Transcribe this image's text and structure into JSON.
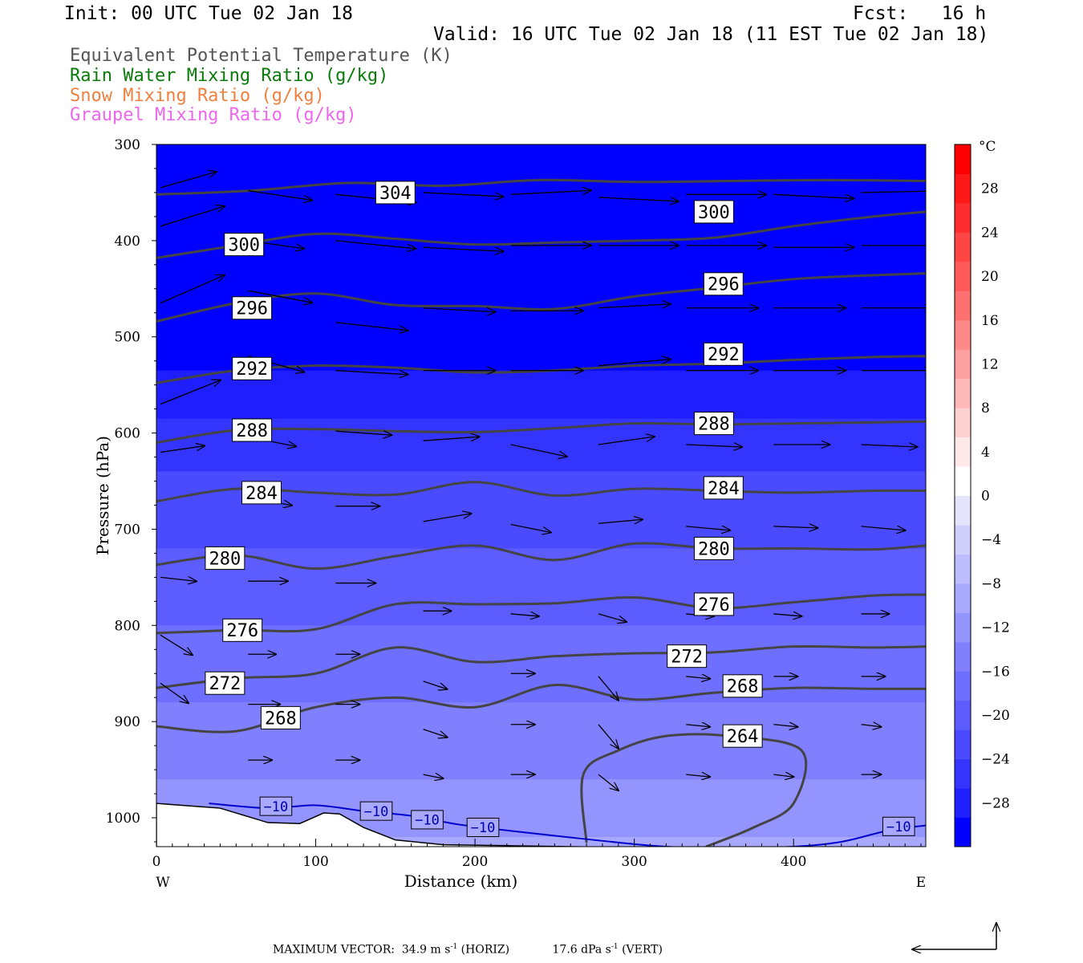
{
  "header": {
    "init": "Init: 00 UTC Tue 02 Jan 18",
    "fcst": "Fcst:   16 h",
    "valid": "Valid: 16 UTC Tue 02 Jan 18 (11 EST Tue 02 Jan 18)"
  },
  "legend": [
    {
      "text": "Equivalent Potential Temperature (K)",
      "color": "#555555"
    },
    {
      "text": "Rain Water Mixing Ratio (g/kg)",
      "color": "#0a7a0a"
    },
    {
      "text": "Snow Mixing Ratio (g/kg)",
      "color": "#f08040"
    },
    {
      "text": "Graupel Mixing Ratio (g/kg)",
      "color": "#ee66ee"
    }
  ],
  "footer": {
    "max_vector_label": "MAXIMUM VECTOR:",
    "horiz": "34.9 m s",
    "horiz_unit": "(HORIZ)",
    "vert": "17.6 dPa s",
    "vert_unit": "(VERT)",
    "exponent": "-1"
  },
  "chart_data": {
    "type": "heatmap",
    "xlabel": "Distance (km)",
    "ylabel": "Pressure (hPa)",
    "xlim": [
      0,
      483
    ],
    "ylim": [
      1030,
      300
    ],
    "x_ticks": [
      0,
      100,
      200,
      300,
      400
    ],
    "y_ticks": [
      300,
      400,
      500,
      600,
      700,
      800,
      900,
      1000
    ],
    "x_end_labels": {
      "left": "W",
      "right": "E"
    },
    "colorbar": {
      "unit": "°C",
      "ticks": [
        28,
        24,
        20,
        16,
        12,
        8,
        4,
        0,
        -4,
        -8,
        -12,
        -16,
        -20,
        -24,
        -28
      ],
      "range": [
        -32,
        32
      ],
      "colors_low_to_high": [
        "#0000ff",
        "#1e1eff",
        "#3434ff",
        "#4a4aff",
        "#5c5cff",
        "#6e6eff",
        "#8080ff",
        "#9494ff",
        "#a8a8ff",
        "#bcbcff",
        "#d0d0ff",
        "#e4e4ff",
        "#ffffff",
        "#ffe8e8",
        "#ffd0d0",
        "#ffb8b8",
        "#ffa0a0",
        "#ff8888",
        "#ff7070",
        "#ff5a5a",
        "#ff4444",
        "#ff2e2e",
        "#ff1818",
        "#ff0000"
      ]
    },
    "temperature_field_rows": [
      {
        "p": 300,
        "t": -48
      },
      {
        "p": 540,
        "t": -29
      },
      {
        "p": 580,
        "t": -27
      },
      {
        "p": 640,
        "t": -24
      },
      {
        "p": 700,
        "t": -22
      },
      {
        "p": 760,
        "t": -20
      },
      {
        "p": 820,
        "t": -18
      },
      {
        "p": 880,
        "t": -16
      },
      {
        "p": 940,
        "t": -14
      },
      {
        "p": 1000,
        "t": -12
      },
      {
        "p": 1030,
        "t": -10
      }
    ],
    "theta_e_contours": [
      {
        "level": 304,
        "x": [
          0,
          60,
          120,
          180,
          240,
          300,
          360,
          420,
          483
        ],
        "p": [
          352,
          348,
          340,
          343,
          337,
          339,
          338,
          337,
          338
        ],
        "labels": [
          {
            "text": "304",
            "x": 150,
            "p": 350
          }
        ]
      },
      {
        "level": 300,
        "x": [
          0,
          50,
          100,
          150,
          200,
          250,
          300,
          350,
          400,
          450,
          483
        ],
        "p": [
          418,
          405,
          393,
          398,
          404,
          402,
          400,
          397,
          385,
          375,
          370
        ],
        "labels": [
          {
            "text": "300",
            "x": 55,
            "p": 404
          },
          {
            "text": "300",
            "x": 350,
            "p": 370
          }
        ]
      },
      {
        "level": 296,
        "x": [
          0,
          50,
          100,
          150,
          200,
          250,
          300,
          350,
          400,
          450,
          483
        ],
        "p": [
          484,
          465,
          455,
          467,
          468,
          471,
          458,
          449,
          440,
          436,
          434
        ],
        "labels": [
          {
            "text": "296",
            "x": 60,
            "p": 470
          },
          {
            "text": "296",
            "x": 356,
            "p": 445
          }
        ]
      },
      {
        "level": 292,
        "x": [
          0,
          50,
          100,
          150,
          200,
          250,
          300,
          350,
          400,
          450,
          483
        ],
        "p": [
          548,
          535,
          530,
          532,
          537,
          535,
          530,
          528,
          524,
          521,
          520
        ],
        "labels": [
          {
            "text": "292",
            "x": 60,
            "p": 533
          },
          {
            "text": "292",
            "x": 356,
            "p": 518
          }
        ]
      },
      {
        "level": 288,
        "x": [
          0,
          50,
          100,
          150,
          200,
          250,
          300,
          350,
          400,
          450,
          483
        ],
        "p": [
          610,
          597,
          596,
          598,
          599,
          595,
          590,
          591,
          590,
          589,
          588
        ],
        "labels": [
          {
            "text": "288",
            "x": 60,
            "p": 597
          },
          {
            "text": "288",
            "x": 350,
            "p": 590
          }
        ]
      },
      {
        "level": 284,
        "x": [
          0,
          50,
          100,
          150,
          200,
          250,
          300,
          350,
          400,
          450,
          483
        ],
        "p": [
          671,
          658,
          662,
          664,
          651,
          665,
          658,
          660,
          662,
          660,
          660
        ],
        "labels": [
          {
            "text": "284",
            "x": 66,
            "p": 662
          },
          {
            "text": "284",
            "x": 356,
            "p": 657
          }
        ]
      },
      {
        "level": 280,
        "x": [
          0,
          50,
          100,
          150,
          200,
          250,
          300,
          350,
          400,
          450,
          483
        ],
        "p": [
          737,
          727,
          741,
          728,
          717,
          732,
          715,
          720,
          720,
          721,
          717
        ],
        "labels": [
          {
            "text": "280",
            "x": 43,
            "p": 730
          },
          {
            "text": "280",
            "x": 350,
            "p": 720
          }
        ]
      },
      {
        "level": 276,
        "x": [
          0,
          50,
          100,
          150,
          200,
          250,
          300,
          350,
          400,
          450,
          483
        ],
        "p": [
          808,
          805,
          804,
          778,
          778,
          777,
          771,
          782,
          776,
          769,
          768
        ],
        "labels": [
          {
            "text": "276",
            "x": 54,
            "p": 805
          },
          {
            "text": "276",
            "x": 350,
            "p": 778
          }
        ]
      },
      {
        "level": 272,
        "x": [
          0,
          50,
          100,
          150,
          200,
          250,
          300,
          350,
          400,
          450,
          483
        ],
        "p": [
          865,
          855,
          850,
          823,
          838,
          832,
          829,
          828,
          822,
          823,
          822
        ],
        "labels": [
          {
            "text": "272",
            "x": 43,
            "p": 860
          },
          {
            "text": "272",
            "x": 333,
            "p": 832
          }
        ]
      },
      {
        "level": 268,
        "x": [
          0,
          50,
          100,
          150,
          200,
          250,
          300,
          350,
          400,
          450,
          483
        ],
        "p": [
          905,
          910,
          885,
          875,
          885,
          862,
          877,
          870,
          865,
          866,
          866
        ],
        "labels": [
          {
            "text": "268",
            "x": 78,
            "p": 896
          },
          {
            "text": "268",
            "x": 368,
            "p": 863
          }
        ]
      },
      {
        "level": 264,
        "x": [
          270,
          268,
          290,
          320,
          360,
          405,
          400,
          375,
          345
        ],
        "p": [
          1026,
          955,
          930,
          915,
          915,
          930,
          985,
          1010,
          1030
        ],
        "labels": [
          {
            "text": "264",
            "x": 368,
            "p": 915
          }
        ]
      }
    ],
    "temperature_minus10_line": {
      "level": -10,
      "x": [
        33,
        70,
        100,
        130,
        160,
        190,
        230,
        280,
        320,
        360,
        400,
        430,
        460,
        483
      ],
      "p": [
        985,
        990,
        987,
        993,
        998,
        1007,
        1015,
        1024,
        1030,
        1031,
        1030,
        1025,
        1013,
        1008
      ],
      "labels": [
        {
          "text": "−10",
          "x": 75,
          "p": 988
        },
        {
          "text": "−10",
          "x": 138,
          "p": 993
        },
        {
          "text": "−10",
          "x": 170,
          "p": 1002
        },
        {
          "text": "−10",
          "x": 205,
          "p": 1010
        },
        {
          "text": "−10",
          "x": 466,
          "p": 1009
        }
      ]
    },
    "terrain": {
      "x": [
        0,
        40,
        70,
        90,
        105,
        115,
        130,
        150,
        180,
        220,
        260,
        300,
        483
      ],
      "p": [
        985,
        990,
        1005,
        1006,
        995,
        996,
        1010,
        1023,
        1028,
        1029,
        1030,
        1031,
        1031
      ]
    },
    "wind_vectors": [
      {
        "x": 0,
        "p": 345,
        "dx": 70,
        "dp": -20
      },
      {
        "x": 0,
        "p": 385,
        "dx": 80,
        "dp": -25
      },
      {
        "x": 0,
        "p": 465,
        "dx": 80,
        "dp": -35
      },
      {
        "x": 0,
        "p": 570,
        "dx": 75,
        "dp": -30
      },
      {
        "x": 0,
        "p": 620,
        "dx": 55,
        "dp": -8
      },
      {
        "x": 0,
        "p": 750,
        "dx": 45,
        "dp": 5
      },
      {
        "x": 0,
        "p": 810,
        "dx": 40,
        "dp": 25
      },
      {
        "x": 0,
        "p": 860,
        "dx": 35,
        "dp": 25
      },
      {
        "x": 55,
        "p": 348,
        "dx": 80,
        "dp": 12
      },
      {
        "x": 55,
        "p": 400,
        "dx": 70,
        "dp": 10
      },
      {
        "x": 55,
        "p": 452,
        "dx": 80,
        "dp": 15
      },
      {
        "x": 55,
        "p": 520,
        "dx": 70,
        "dp": 20
      },
      {
        "x": 55,
        "p": 604,
        "dx": 60,
        "dp": 12
      },
      {
        "x": 55,
        "p": 667,
        "dx": 55,
        "dp": 10
      },
      {
        "x": 55,
        "p": 754,
        "dx": 50,
        "dp": 0
      },
      {
        "x": 55,
        "p": 830,
        "dx": 35,
        "dp": 0
      },
      {
        "x": 55,
        "p": 882,
        "dx": 40,
        "dp": 0
      },
      {
        "x": 55,
        "p": 940,
        "dx": 30,
        "dp": 0
      },
      {
        "x": 110,
        "p": 352,
        "dx": 100,
        "dp": 10
      },
      {
        "x": 110,
        "p": 400,
        "dx": 100,
        "dp": 10
      },
      {
        "x": 110,
        "p": 485,
        "dx": 90,
        "dp": 10
      },
      {
        "x": 110,
        "p": 535,
        "dx": 90,
        "dp": 5
      },
      {
        "x": 110,
        "p": 598,
        "dx": 70,
        "dp": 5
      },
      {
        "x": 110,
        "p": 676,
        "dx": 55,
        "dp": 0
      },
      {
        "x": 110,
        "p": 756,
        "dx": 50,
        "dp": 0
      },
      {
        "x": 110,
        "p": 830,
        "dx": 30,
        "dp": 0
      },
      {
        "x": 110,
        "p": 882,
        "dx": 30,
        "dp": 0
      },
      {
        "x": 110,
        "p": 940,
        "dx": 30,
        "dp": 0
      },
      {
        "x": 165,
        "p": 350,
        "dx": 100,
        "dp": 5
      },
      {
        "x": 165,
        "p": 407,
        "dx": 100,
        "dp": 5
      },
      {
        "x": 165,
        "p": 470,
        "dx": 90,
        "dp": 5
      },
      {
        "x": 165,
        "p": 535,
        "dx": 90,
        "dp": 0
      },
      {
        "x": 165,
        "p": 608,
        "dx": 70,
        "dp": -5
      },
      {
        "x": 165,
        "p": 692,
        "dx": 60,
        "dp": -10
      },
      {
        "x": 165,
        "p": 785,
        "dx": 35,
        "dp": 0
      },
      {
        "x": 165,
        "p": 858,
        "dx": 30,
        "dp": 10
      },
      {
        "x": 165,
        "p": 908,
        "dx": 30,
        "dp": 10
      },
      {
        "x": 165,
        "p": 955,
        "dx": 25,
        "dp": 5
      },
      {
        "x": 220,
        "p": 352,
        "dx": 100,
        "dp": -5
      },
      {
        "x": 220,
        "p": 405,
        "dx": 100,
        "dp": 0
      },
      {
        "x": 220,
        "p": 473,
        "dx": 90,
        "dp": 0
      },
      {
        "x": 220,
        "p": 535,
        "dx": 90,
        "dp": 0
      },
      {
        "x": 220,
        "p": 612,
        "dx": 70,
        "dp": 15
      },
      {
        "x": 220,
        "p": 695,
        "dx": 50,
        "dp": 10
      },
      {
        "x": 220,
        "p": 788,
        "dx": 35,
        "dp": 3
      },
      {
        "x": 220,
        "p": 850,
        "dx": 30,
        "dp": 0
      },
      {
        "x": 220,
        "p": 903,
        "dx": 30,
        "dp": 0
      },
      {
        "x": 220,
        "p": 955,
        "dx": 30,
        "dp": 0
      },
      {
        "x": 275,
        "p": 355,
        "dx": 100,
        "dp": 5
      },
      {
        "x": 275,
        "p": 405,
        "dx": 100,
        "dp": 0
      },
      {
        "x": 275,
        "p": 470,
        "dx": 90,
        "dp": -5
      },
      {
        "x": 275,
        "p": 530,
        "dx": 90,
        "dp": -8
      },
      {
        "x": 275,
        "p": 612,
        "dx": 70,
        "dp": -10
      },
      {
        "x": 275,
        "p": 694,
        "dx": 55,
        "dp": -5
      },
      {
        "x": 275,
        "p": 788,
        "dx": 35,
        "dp": 10
      },
      {
        "x": 275,
        "p": 853,
        "dx": 25,
        "dp": 30
      },
      {
        "x": 275,
        "p": 903,
        "dx": 25,
        "dp": 30
      },
      {
        "x": 275,
        "p": 955,
        "dx": 25,
        "dp": 20
      },
      {
        "x": 330,
        "p": 352,
        "dx": 100,
        "dp": 0
      },
      {
        "x": 330,
        "p": 405,
        "dx": 100,
        "dp": 0
      },
      {
        "x": 330,
        "p": 470,
        "dx": 90,
        "dp": 0
      },
      {
        "x": 330,
        "p": 535,
        "dx": 90,
        "dp": 0
      },
      {
        "x": 330,
        "p": 612,
        "dx": 70,
        "dp": 3
      },
      {
        "x": 330,
        "p": 697,
        "dx": 55,
        "dp": 5
      },
      {
        "x": 330,
        "p": 788,
        "dx": 35,
        "dp": 3
      },
      {
        "x": 330,
        "p": 853,
        "dx": 30,
        "dp": 3
      },
      {
        "x": 330,
        "p": 903,
        "dx": 30,
        "dp": 3
      },
      {
        "x": 330,
        "p": 955,
        "dx": 30,
        "dp": 3
      },
      {
        "x": 385,
        "p": 352,
        "dx": 100,
        "dp": 5
      },
      {
        "x": 385,
        "p": 407,
        "dx": 100,
        "dp": 0
      },
      {
        "x": 385,
        "p": 470,
        "dx": 90,
        "dp": 0
      },
      {
        "x": 385,
        "p": 535,
        "dx": 90,
        "dp": 0
      },
      {
        "x": 385,
        "p": 612,
        "dx": 70,
        "dp": 0
      },
      {
        "x": 385,
        "p": 697,
        "dx": 55,
        "dp": 2
      },
      {
        "x": 385,
        "p": 788,
        "dx": 35,
        "dp": 3
      },
      {
        "x": 385,
        "p": 853,
        "dx": 30,
        "dp": 0
      },
      {
        "x": 385,
        "p": 903,
        "dx": 30,
        "dp": 3
      },
      {
        "x": 385,
        "p": 955,
        "dx": 25,
        "dp": 3
      },
      {
        "x": 440,
        "p": 350,
        "dx": 100,
        "dp": -2
      },
      {
        "x": 440,
        "p": 405,
        "dx": 100,
        "dp": 0
      },
      {
        "x": 440,
        "p": 470,
        "dx": 90,
        "dp": 0
      },
      {
        "x": 440,
        "p": 535,
        "dx": 90,
        "dp": 0
      },
      {
        "x": 440,
        "p": 612,
        "dx": 70,
        "dp": 3
      },
      {
        "x": 440,
        "p": 697,
        "dx": 55,
        "dp": 5
      },
      {
        "x": 440,
        "p": 788,
        "dx": 35,
        "dp": 0
      },
      {
        "x": 440,
        "p": 853,
        "dx": 30,
        "dp": 0
      },
      {
        "x": 440,
        "p": 903,
        "dx": 25,
        "dp": 3
      },
      {
        "x": 440,
        "p": 955,
        "dx": 25,
        "dp": 0
      }
    ]
  }
}
